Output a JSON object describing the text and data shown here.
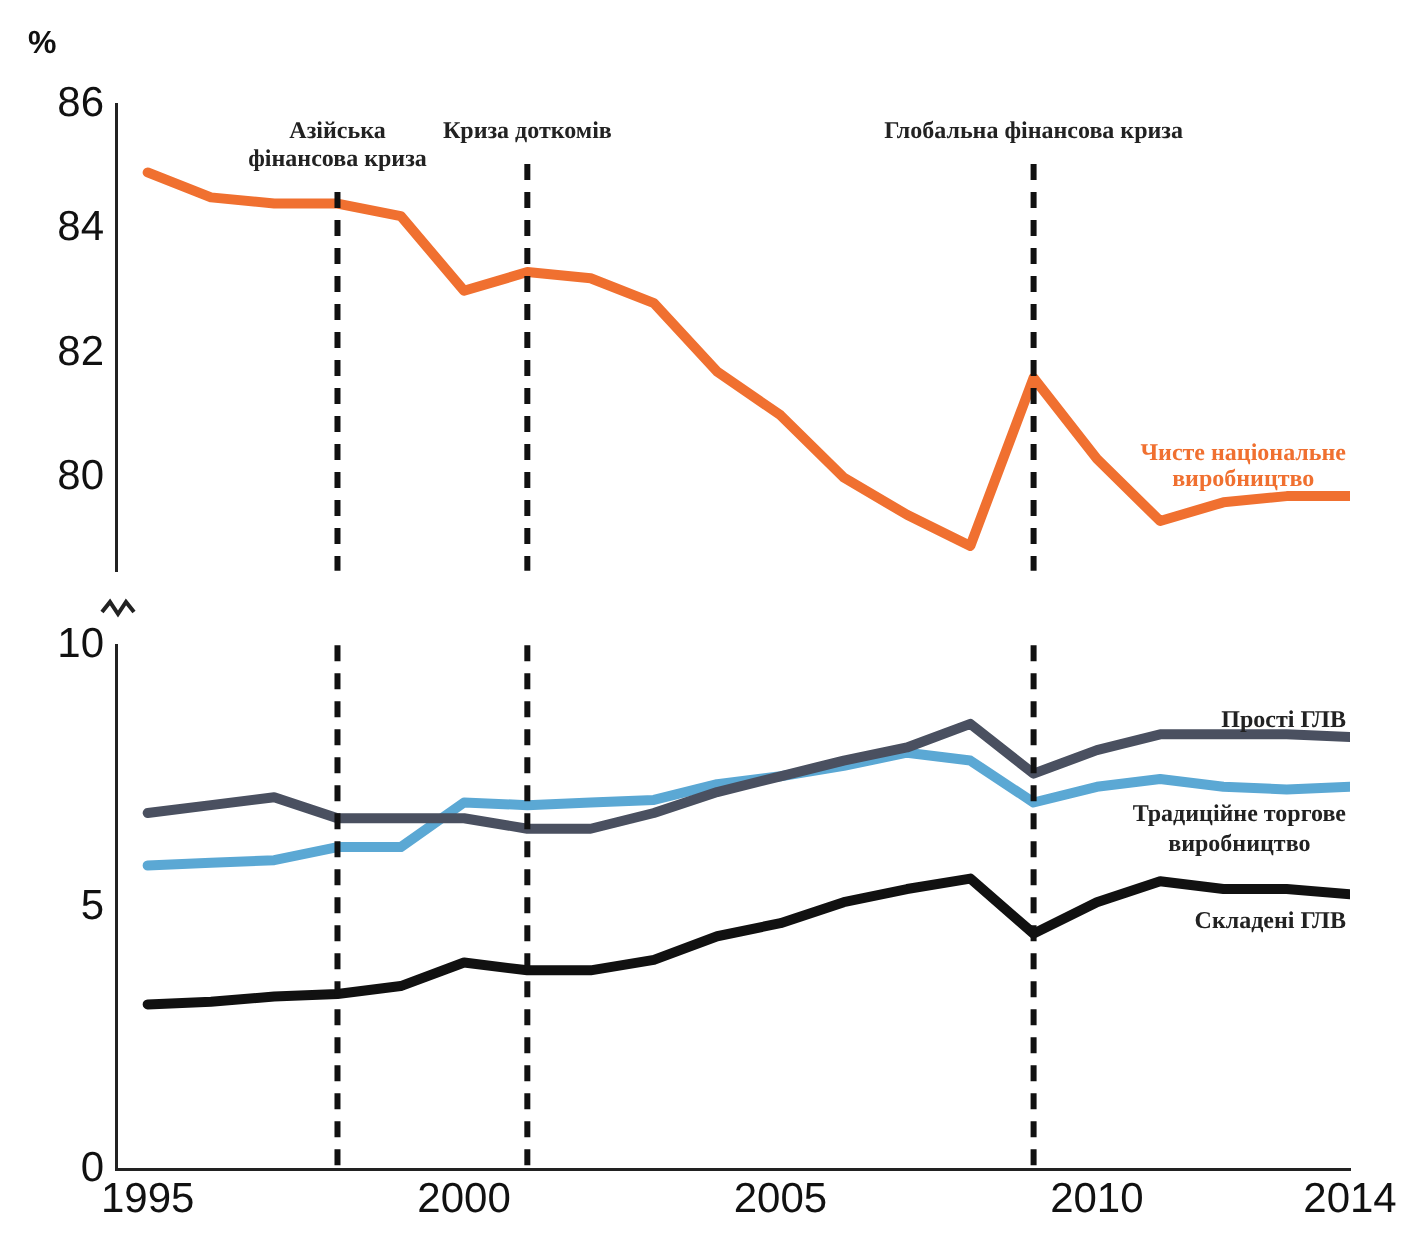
{
  "chart_data": [
    {
      "type": "line",
      "ylabel": "%",
      "x": [
        1995,
        1996,
        1997,
        1998,
        1999,
        2000,
        2001,
        2002,
        2003,
        2004,
        2005,
        2006,
        2007,
        2008,
        2009,
        2010,
        2011,
        2012,
        2013,
        2014
      ],
      "xlim": [
        1994.5,
        2014
      ],
      "ylim": [
        78.5,
        86
      ],
      "yticks": [
        80,
        82,
        84,
        86
      ],
      "tick_labels": "y",
      "grid": false,
      "legend": false,
      "marker": "none",
      "line_style": "solid",
      "series": [
        {
          "name": "Чисте національне виробництво",
          "color": "#f07030",
          "values": [
            84.9,
            84.5,
            84.4,
            84.4,
            84.2,
            83.0,
            83.3,
            83.2,
            82.8,
            81.7,
            81.0,
            80.0,
            79.4,
            78.9,
            81.6,
            80.3,
            79.3,
            79.6,
            79.7,
            79.7
          ]
        }
      ],
      "ref_lines": [
        {
          "axis": "x",
          "value": 1998,
          "label": "Азійська фінансова криза",
          "line_style": "dashed",
          "color": "#111111"
        },
        {
          "axis": "x",
          "value": 2001,
          "label": "Криза доткомів",
          "line_style": "dashed",
          "color": "#111111"
        },
        {
          "axis": "x",
          "value": 2009,
          "label": "Глобальна фінансова криза",
          "line_style": "dashed",
          "color": "#111111"
        }
      ]
    },
    {
      "type": "line",
      "x": [
        1995,
        1996,
        1997,
        1998,
        1999,
        2000,
        2001,
        2002,
        2003,
        2004,
        2005,
        2006,
        2007,
        2008,
        2009,
        2010,
        2011,
        2012,
        2013,
        2014
      ],
      "xlim": [
        1994.5,
        2014
      ],
      "xticks": [
        1995,
        2000,
        2005,
        2010,
        2014
      ],
      "ylim": [
        0,
        10
      ],
      "yticks": [
        0,
        5,
        10
      ],
      "grid": false,
      "legend": false,
      "marker": "none",
      "line_style": "solid",
      "series": [
        {
          "name": "Прості ГЛВ",
          "color": "#4a5060",
          "values": [
            6.8,
            6.95,
            7.1,
            6.7,
            6.7,
            6.7,
            6.5,
            6.5,
            6.8,
            7.2,
            7.5,
            7.8,
            8.05,
            8.5,
            7.55,
            8.0,
            8.3,
            8.3,
            8.3,
            8.25
          ]
        },
        {
          "name": "Традиційне торгове виробництво",
          "color": "#5ba8d4",
          "values": [
            5.8,
            5.85,
            5.9,
            6.15,
            6.15,
            7.0,
            6.95,
            7.0,
            7.05,
            7.35,
            7.5,
            7.7,
            7.95,
            7.8,
            7.0,
            7.3,
            7.45,
            7.3,
            7.25,
            7.3
          ]
        },
        {
          "name": "Складені ГЛВ",
          "color": "#111111",
          "values": [
            3.15,
            3.2,
            3.3,
            3.35,
            3.5,
            3.95,
            3.8,
            3.8,
            4.0,
            4.45,
            4.7,
            5.1,
            5.35,
            5.55,
            4.5,
            5.1,
            5.5,
            5.35,
            5.35,
            5.25
          ]
        }
      ],
      "ref_lines": [
        {
          "axis": "x",
          "value": 1998,
          "line_style": "dashed",
          "color": "#111111"
        },
        {
          "axis": "x",
          "value": 2001,
          "line_style": "dashed",
          "color": "#111111"
        },
        {
          "axis": "x",
          "value": 2009,
          "line_style": "dashed",
          "color": "#111111"
        }
      ]
    }
  ]
}
